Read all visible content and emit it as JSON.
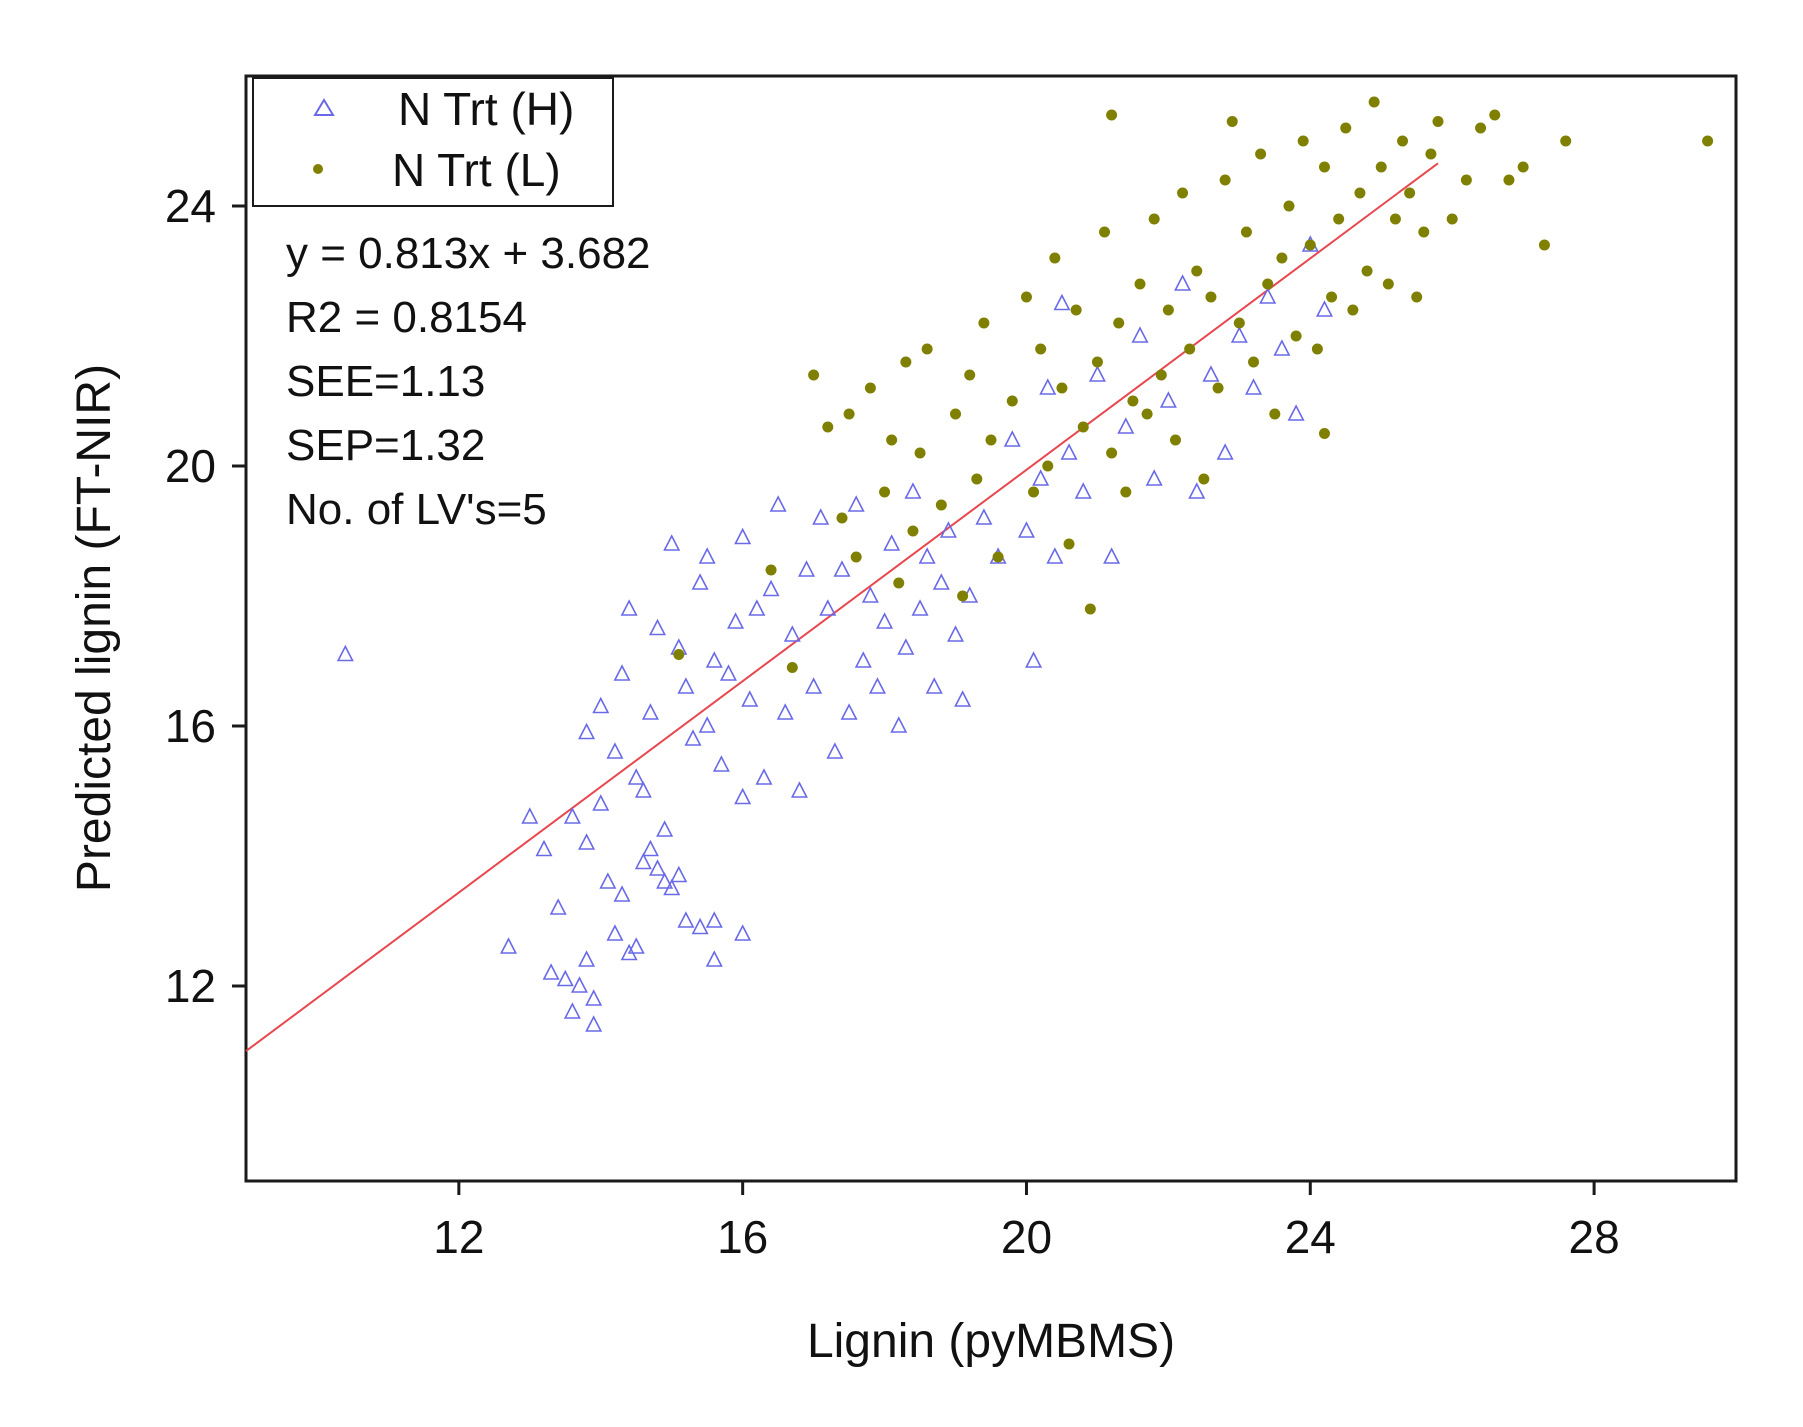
{
  "chart_data": {
    "type": "scatter",
    "title": "",
    "xlabel": "Lignin (pyMBMS)",
    "ylabel": "Predicted lignin (FT-NIR)",
    "xlim": [
      9,
      30
    ],
    "ylim": [
      9,
      26
    ],
    "xticks": [
      12,
      16,
      20,
      24,
      28
    ],
    "yticks": [
      12,
      16,
      20,
      24
    ],
    "grid": false,
    "legend_position": "top-left",
    "legend": [
      "N Trt (H)",
      "N Trt (L)"
    ],
    "annotations": [
      "y = 0.813x + 3.682",
      "R2 = 0.8154",
      "SEE=1.13",
      "SEP=1.32",
      "No. of LV's=5"
    ],
    "fit_line": {
      "slope": 0.813,
      "intercept": 3.682,
      "x_range": [
        9,
        25.8
      ],
      "color": "#e8474f"
    },
    "series": [
      {
        "name": "N Trt (H)",
        "marker": "open-triangle",
        "color": "#6a6ae8",
        "points": [
          [
            10.4,
            17.1
          ],
          [
            12.7,
            12.6
          ],
          [
            13.0,
            14.6
          ],
          [
            13.2,
            14.1
          ],
          [
            13.3,
            12.2
          ],
          [
            13.4,
            13.2
          ],
          [
            13.5,
            12.1
          ],
          [
            13.6,
            11.6
          ],
          [
            13.7,
            12.0
          ],
          [
            13.8,
            12.4
          ],
          [
            13.9,
            11.4
          ],
          [
            13.9,
            11.8
          ],
          [
            13.6,
            14.6
          ],
          [
            13.8,
            14.2
          ],
          [
            14.0,
            14.8
          ],
          [
            14.1,
            13.6
          ],
          [
            14.2,
            12.8
          ],
          [
            14.3,
            13.4
          ],
          [
            14.4,
            12.5
          ],
          [
            14.5,
            12.6
          ],
          [
            14.6,
            13.9
          ],
          [
            14.7,
            14.1
          ],
          [
            14.8,
            13.8
          ],
          [
            14.9,
            13.6
          ],
          [
            15.0,
            13.5
          ],
          [
            15.1,
            13.7
          ],
          [
            15.2,
            13.0
          ],
          [
            15.4,
            12.9
          ],
          [
            15.6,
            13.0
          ],
          [
            15.6,
            12.4
          ],
          [
            16.0,
            12.8
          ],
          [
            13.8,
            15.9
          ],
          [
            14.0,
            16.3
          ],
          [
            14.2,
            15.6
          ],
          [
            14.3,
            16.8
          ],
          [
            14.4,
            17.8
          ],
          [
            14.5,
            15.2
          ],
          [
            14.6,
            15.0
          ],
          [
            14.7,
            16.2
          ],
          [
            14.8,
            17.5
          ],
          [
            14.9,
            14.4
          ],
          [
            15.0,
            18.8
          ],
          [
            15.1,
            17.2
          ],
          [
            15.2,
            16.6
          ],
          [
            15.3,
            15.8
          ],
          [
            15.4,
            18.2
          ],
          [
            15.5,
            16.0
          ],
          [
            15.5,
            18.6
          ],
          [
            15.6,
            17.0
          ],
          [
            15.7,
            15.4
          ],
          [
            15.8,
            16.8
          ],
          [
            15.9,
            17.6
          ],
          [
            16.0,
            18.9
          ],
          [
            16.0,
            14.9
          ],
          [
            16.1,
            16.4
          ],
          [
            16.2,
            17.8
          ],
          [
            16.3,
            15.2
          ],
          [
            16.4,
            18.1
          ],
          [
            16.5,
            19.4
          ],
          [
            16.6,
            16.2
          ],
          [
            16.7,
            17.4
          ],
          [
            16.8,
            15.0
          ],
          [
            16.9,
            18.4
          ],
          [
            17.0,
            16.6
          ],
          [
            17.1,
            19.2
          ],
          [
            17.2,
            17.8
          ],
          [
            17.3,
            15.6
          ],
          [
            17.4,
            18.4
          ],
          [
            17.5,
            16.2
          ],
          [
            17.6,
            19.4
          ],
          [
            17.7,
            17.0
          ],
          [
            17.8,
            18.0
          ],
          [
            17.9,
            16.6
          ],
          [
            18.0,
            17.6
          ],
          [
            18.1,
            18.8
          ],
          [
            18.2,
            16.0
          ],
          [
            18.3,
            17.2
          ],
          [
            18.4,
            19.6
          ],
          [
            18.5,
            17.8
          ],
          [
            18.6,
            18.6
          ],
          [
            18.7,
            16.6
          ],
          [
            18.8,
            18.2
          ],
          [
            18.9,
            19.0
          ],
          [
            19.0,
            17.4
          ],
          [
            19.1,
            16.4
          ],
          [
            19.2,
            18.0
          ],
          [
            19.4,
            19.2
          ],
          [
            19.6,
            18.6
          ],
          [
            19.8,
            20.4
          ],
          [
            20.0,
            19.0
          ],
          [
            20.1,
            17.0
          ],
          [
            20.2,
            19.8
          ],
          [
            20.3,
            21.2
          ],
          [
            20.4,
            18.6
          ],
          [
            20.5,
            22.5
          ],
          [
            20.6,
            20.2
          ],
          [
            20.8,
            19.6
          ],
          [
            21.0,
            21.4
          ],
          [
            21.2,
            18.6
          ],
          [
            21.4,
            20.6
          ],
          [
            21.6,
            22.0
          ],
          [
            21.8,
            19.8
          ],
          [
            22.0,
            21.0
          ],
          [
            22.2,
            22.8
          ],
          [
            22.4,
            19.6
          ],
          [
            22.6,
            21.4
          ],
          [
            22.8,
            20.2
          ],
          [
            23.0,
            22.0
          ],
          [
            23.2,
            21.2
          ],
          [
            23.4,
            22.6
          ],
          [
            23.6,
            21.8
          ],
          [
            23.8,
            20.8
          ],
          [
            24.0,
            23.4
          ],
          [
            24.2,
            22.4
          ]
        ]
      },
      {
        "name": "N Trt (L)",
        "marker": "filled-circle",
        "color": "#808000",
        "points": [
          [
            15.1,
            17.1
          ],
          [
            16.4,
            18.4
          ],
          [
            16.7,
            16.9
          ],
          [
            17.0,
            21.4
          ],
          [
            17.2,
            20.6
          ],
          [
            17.4,
            19.2
          ],
          [
            17.5,
            20.8
          ],
          [
            17.6,
            18.6
          ],
          [
            17.8,
            21.2
          ],
          [
            18.0,
            19.6
          ],
          [
            18.1,
            20.4
          ],
          [
            18.2,
            18.2
          ],
          [
            18.3,
            21.6
          ],
          [
            18.4,
            19.0
          ],
          [
            18.5,
            20.2
          ],
          [
            18.6,
            21.8
          ],
          [
            18.8,
            19.4
          ],
          [
            19.0,
            20.8
          ],
          [
            19.1,
            18.0
          ],
          [
            19.2,
            21.4
          ],
          [
            19.3,
            19.8
          ],
          [
            19.4,
            22.2
          ],
          [
            19.5,
            20.4
          ],
          [
            19.6,
            18.6
          ],
          [
            19.8,
            21.0
          ],
          [
            20.0,
            22.6
          ],
          [
            20.1,
            19.6
          ],
          [
            20.2,
            21.8
          ],
          [
            20.3,
            20.0
          ],
          [
            20.4,
            23.2
          ],
          [
            20.5,
            21.2
          ],
          [
            20.6,
            18.8
          ],
          [
            20.7,
            22.4
          ],
          [
            20.8,
            20.6
          ],
          [
            20.9,
            17.8
          ],
          [
            21.0,
            21.6
          ],
          [
            21.1,
            23.6
          ],
          [
            21.2,
            20.2
          ],
          [
            21.2,
            25.4
          ],
          [
            21.3,
            22.2
          ],
          [
            21.4,
            19.6
          ],
          [
            21.5,
            21.0
          ],
          [
            21.6,
            22.8
          ],
          [
            21.7,
            20.8
          ],
          [
            21.8,
            23.8
          ],
          [
            21.9,
            21.4
          ],
          [
            22.0,
            22.4
          ],
          [
            22.1,
            20.4
          ],
          [
            22.2,
            24.2
          ],
          [
            22.3,
            21.8
          ],
          [
            22.4,
            23.0
          ],
          [
            22.5,
            19.8
          ],
          [
            22.6,
            22.6
          ],
          [
            22.7,
            21.2
          ],
          [
            22.8,
            24.4
          ],
          [
            22.9,
            25.3
          ],
          [
            23.0,
            22.2
          ],
          [
            23.1,
            23.6
          ],
          [
            23.2,
            21.6
          ],
          [
            23.3,
            24.8
          ],
          [
            23.4,
            22.8
          ],
          [
            23.5,
            20.8
          ],
          [
            23.6,
            23.2
          ],
          [
            23.7,
            24.0
          ],
          [
            23.8,
            22.0
          ],
          [
            23.9,
            25.0
          ],
          [
            24.0,
            23.4
          ],
          [
            24.1,
            21.8
          ],
          [
            24.2,
            24.6
          ],
          [
            24.2,
            20.5
          ],
          [
            24.3,
            22.6
          ],
          [
            24.4,
            23.8
          ],
          [
            24.5,
            25.2
          ],
          [
            24.6,
            22.4
          ],
          [
            24.7,
            24.2
          ],
          [
            24.8,
            23.0
          ],
          [
            24.9,
            25.6
          ],
          [
            25.0,
            24.6
          ],
          [
            25.1,
            22.8
          ],
          [
            25.2,
            23.8
          ],
          [
            25.3,
            25.0
          ],
          [
            25.4,
            24.2
          ],
          [
            25.5,
            22.6
          ],
          [
            25.6,
            23.6
          ],
          [
            25.7,
            24.8
          ],
          [
            25.8,
            25.3
          ],
          [
            26.0,
            23.8
          ],
          [
            26.2,
            24.4
          ],
          [
            26.4,
            25.2
          ],
          [
            26.6,
            25.4
          ],
          [
            26.8,
            24.4
          ],
          [
            27.0,
            24.6
          ],
          [
            27.3,
            23.4
          ],
          [
            27.6,
            25.0
          ],
          [
            29.6,
            25.0
          ]
        ]
      }
    ]
  }
}
